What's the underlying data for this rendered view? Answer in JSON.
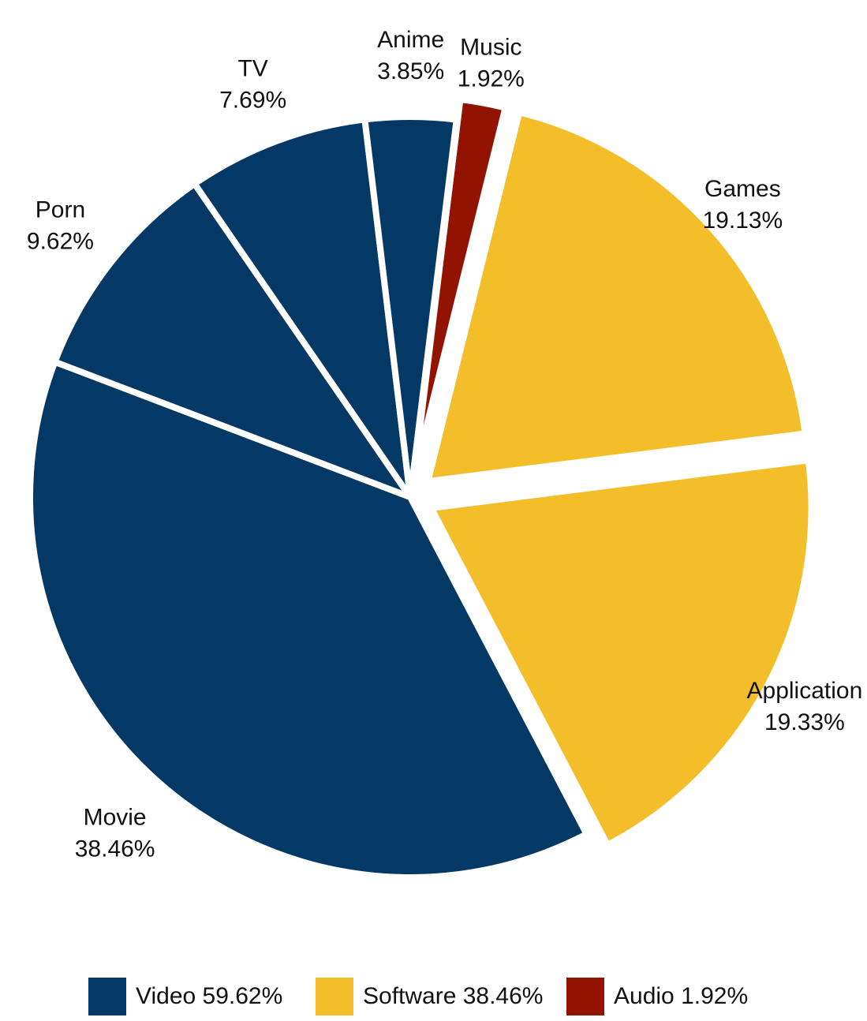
{
  "chart_data": {
    "type": "pie",
    "title": "",
    "slices": [
      {
        "label": "Music",
        "value": 1.92,
        "value_label": "1.92%",
        "group": "Audio",
        "color": "#921400"
      },
      {
        "label": "Games",
        "value": 19.13,
        "value_label": "19.13%",
        "group": "Software",
        "color": "#f3be2a"
      },
      {
        "label": "Application",
        "value": 19.33,
        "value_label": "19.33%",
        "group": "Software",
        "color": "#f3be2a"
      },
      {
        "label": "Movie",
        "value": 38.46,
        "value_label": "38.46%",
        "group": "Video",
        "color": "#043966"
      },
      {
        "label": "Porn",
        "value": 9.62,
        "value_label": "9.62%",
        "group": "Video",
        "color": "#043966"
      },
      {
        "label": "TV",
        "value": 7.69,
        "value_label": "7.69%",
        "group": "Video",
        "color": "#043966"
      },
      {
        "label": "Anime",
        "value": 3.85,
        "value_label": "3.85%",
        "group": "Video",
        "color": "#043966"
      }
    ],
    "legend": {
      "placement": "bottom",
      "items": [
        {
          "label": "Video 59.62%",
          "color": "#043966"
        },
        {
          "label": "Software 38.46%",
          "color": "#f3be2a"
        },
        {
          "label": "Audio 1.92%",
          "color": "#921400"
        }
      ]
    }
  }
}
